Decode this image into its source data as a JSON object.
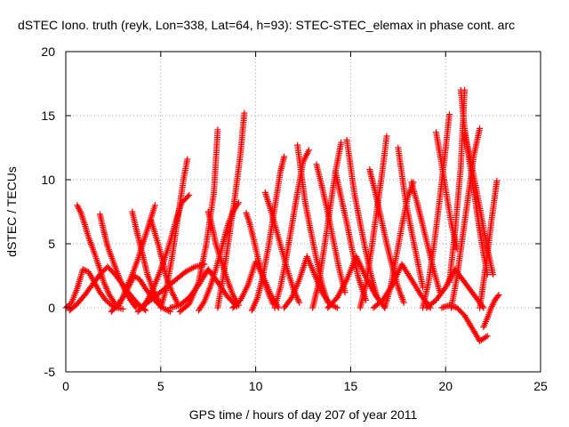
{
  "chart_data": {
    "type": "scatter",
    "title": "dSTEC Iono. truth (reyk, Lon=338, Lat=64, h=93): STEC-STEC_elemax in phase cont. arc",
    "xlabel": "GPS time / hours of day 207 of year 2011",
    "ylabel": "dSTEC  / TECUs",
    "xlim": [
      0,
      25
    ],
    "ylim": [
      -5,
      20
    ],
    "x_ticks": [
      0,
      5,
      10,
      15,
      20,
      25
    ],
    "y_ticks": [
      -5,
      0,
      5,
      10,
      15,
      20
    ],
    "x_tick_labels": [
      "0",
      "5",
      "10",
      "15",
      "20",
      "25"
    ],
    "y_tick_labels": [
      "-5",
      "0",
      "5",
      "10",
      "15",
      "20"
    ],
    "grid": true,
    "legend": "none",
    "marker": "plus",
    "color": "#ff0000",
    "series": [
      {
        "x": [
          0.0,
          0.3,
          0.6,
          0.9,
          1.2,
          1.5,
          1.8,
          2.1,
          2.4,
          2.7,
          3.0
        ],
        "y": [
          0.0,
          0.4,
          1.5,
          3.0,
          2.8,
          2.0,
          1.2,
          0.6,
          0.2,
          0.0,
          -0.1
        ]
      },
      {
        "x": [
          0.6,
          0.8,
          1.0,
          1.2,
          1.5,
          1.8,
          2.0,
          2.3,
          2.6
        ],
        "y": [
          8.0,
          7.4,
          6.5,
          5.5,
          4.3,
          3.0,
          2.0,
          1.0,
          0.3
        ]
      },
      {
        "x": [
          1.8,
          2.0,
          2.2,
          2.5,
          2.8,
          3.1,
          3.4,
          3.7
        ],
        "y": [
          7.3,
          6.0,
          4.8,
          3.6,
          2.4,
          1.4,
          0.6,
          0.0
        ]
      },
      {
        "x": [
          0.2,
          0.6,
          1.0,
          1.4,
          1.8,
          2.2,
          2.6,
          3.0,
          3.4,
          3.8,
          4.2
        ],
        "y": [
          -0.2,
          0.3,
          1.0,
          1.8,
          2.6,
          3.2,
          2.6,
          1.8,
          1.0,
          0.3,
          -0.2
        ]
      },
      {
        "x": [
          2.4,
          2.7,
          3.0,
          3.3,
          3.6,
          3.9,
          4.2,
          4.5,
          4.8,
          5.1,
          5.5
        ],
        "y": [
          -0.3,
          0.2,
          0.8,
          1.6,
          2.5,
          2.2,
          1.5,
          0.9,
          0.4,
          0.0,
          -0.3
        ]
      },
      {
        "x": [
          3.5,
          3.7,
          3.9,
          4.1,
          4.3,
          4.6,
          4.9
        ],
        "y": [
          7.5,
          6.2,
          5.0,
          3.8,
          2.6,
          1.4,
          0.5
        ]
      },
      {
        "x": [
          2.8,
          3.0,
          3.2,
          3.5,
          3.8,
          4.1,
          4.4,
          4.7
        ],
        "y": [
          0.2,
          0.8,
          1.6,
          2.6,
          3.8,
          5.2,
          6.6,
          8.0
        ]
      },
      {
        "x": [
          4.5,
          4.7,
          4.9,
          5.1,
          5.3,
          5.6,
          5.9
        ],
        "y": [
          6.8,
          5.8,
          4.8,
          3.6,
          2.4,
          1.2,
          0.3
        ]
      },
      {
        "x": [
          3.8,
          4.3,
          4.8,
          5.3,
          5.8,
          6.3,
          6.8,
          7.3
        ],
        "y": [
          -0.3,
          0.4,
          1.0,
          1.6,
          2.2,
          2.8,
          3.2,
          3.4
        ]
      },
      {
        "x": [
          4.0,
          4.3,
          4.6,
          4.9,
          5.2,
          5.5,
          5.8,
          6.1,
          6.5
        ],
        "y": [
          0.0,
          0.6,
          1.5,
          2.6,
          3.8,
          5.2,
          6.8,
          8.2,
          8.8
        ]
      },
      {
        "x": [
          5.0,
          5.3,
          5.6,
          5.9,
          6.2,
          6.4
        ],
        "y": [
          0.0,
          1.5,
          4.0,
          7.0,
          10.0,
          11.6
        ]
      },
      {
        "x": [
          5.5,
          6.0,
          6.5,
          7.0,
          7.5,
          8.0,
          8.5,
          9.0
        ],
        "y": [
          0.0,
          0.2,
          0.8,
          1.8,
          3.0,
          2.0,
          0.9,
          0.1
        ]
      },
      {
        "x": [
          6.0,
          6.5,
          7.0,
          7.4,
          7.8,
          8.0
        ],
        "y": [
          -0.3,
          0.3,
          2.0,
          5.0,
          9.0,
          13.9
        ]
      },
      {
        "x": [
          8.0,
          8.3,
          8.6,
          8.9,
          9.2,
          9.4
        ],
        "y": [
          0.0,
          2.5,
          5.5,
          8.6,
          12.0,
          15.2
        ]
      },
      {
        "x": [
          7.0,
          7.3,
          7.6,
          7.9,
          8.2,
          8.5,
          8.8,
          9.1
        ],
        "y": [
          -0.2,
          0.5,
          1.6,
          3.0,
          4.6,
          6.3,
          7.5,
          8.2
        ]
      },
      {
        "x": [
          7.5,
          7.7,
          7.9,
          8.2,
          8.5,
          8.8,
          9.1
        ],
        "y": [
          7.5,
          6.4,
          5.0,
          3.6,
          2.2,
          1.0,
          0.2
        ]
      },
      {
        "x": [
          8.8,
          9.2,
          9.6,
          10.0,
          10.4,
          10.8,
          11.2
        ],
        "y": [
          0.0,
          0.6,
          1.8,
          3.6,
          2.4,
          1.0,
          0.0
        ]
      },
      {
        "x": [
          9.5,
          9.7,
          9.9,
          10.1,
          10.3,
          10.6,
          10.9
        ],
        "y": [
          7.4,
          6.5,
          5.3,
          4.0,
          2.8,
          1.4,
          0.3
        ]
      },
      {
        "x": [
          9.8,
          10.1,
          10.4,
          10.7,
          11.0,
          11.3,
          11.5
        ],
        "y": [
          -0.2,
          0.8,
          2.6,
          5.0,
          7.8,
          10.6,
          11.8
        ]
      },
      {
        "x": [
          10.5,
          10.8,
          11.1,
          11.4,
          11.7,
          12.0,
          12.3
        ],
        "y": [
          9.0,
          7.6,
          6.0,
          4.4,
          2.8,
          1.4,
          0.4
        ]
      },
      {
        "x": [
          11.0,
          11.3,
          11.6,
          11.9,
          12.2,
          12.5,
          12.8
        ],
        "y": [
          0.0,
          1.6,
          3.8,
          6.4,
          9.0,
          11.4,
          12.3
        ]
      },
      {
        "x": [
          11.5,
          11.9,
          12.3,
          12.7,
          13.1,
          13.5,
          13.9,
          14.3
        ],
        "y": [
          0.0,
          0.8,
          2.2,
          4.0,
          2.6,
          1.2,
          0.3,
          0.0
        ]
      },
      {
        "x": [
          12.2,
          12.4,
          12.6,
          12.9,
          13.2,
          13.5,
          13.8
        ],
        "y": [
          12.7,
          10.5,
          8.3,
          6.0,
          3.8,
          1.8,
          0.4
        ]
      },
      {
        "x": [
          13.0,
          13.3,
          13.6,
          13.9,
          14.2,
          14.5
        ],
        "y": [
          0.0,
          1.8,
          4.6,
          7.6,
          10.6,
          12.9
        ]
      },
      {
        "x": [
          13.2,
          13.5,
          13.8,
          14.1,
          14.4,
          14.7
        ],
        "y": [
          11.2,
          9.4,
          7.4,
          5.2,
          3.0,
          1.2
        ]
      },
      {
        "x": [
          14.2,
          14.5,
          14.8,
          15.1,
          15.4,
          15.8
        ],
        "y": [
          10.6,
          8.6,
          6.6,
          4.4,
          2.4,
          0.6
        ]
      },
      {
        "x": [
          13.8,
          14.3,
          14.8,
          15.3,
          15.8,
          16.3,
          16.8
        ],
        "y": [
          0.0,
          0.8,
          2.2,
          4.0,
          2.4,
          1.0,
          0.0
        ]
      },
      {
        "x": [
          14.8,
          15.0,
          15.2,
          15.5,
          15.8,
          16.1,
          16.4
        ],
        "y": [
          13.1,
          11.0,
          8.9,
          6.6,
          4.4,
          2.4,
          0.8
        ]
      },
      {
        "x": [
          15.5,
          15.8,
          16.1,
          16.4,
          16.7,
          16.9
        ],
        "y": [
          0.0,
          1.8,
          4.6,
          7.8,
          11.0,
          13.4
        ]
      },
      {
        "x": [
          16.0,
          16.3,
          16.6,
          16.9,
          17.2,
          17.5,
          17.8
        ],
        "y": [
          10.8,
          9.0,
          7.0,
          5.0,
          3.2,
          1.6,
          0.4
        ]
      },
      {
        "x": [
          16.2,
          16.7,
          17.2,
          17.7,
          18.2,
          18.7,
          19.2
        ],
        "y": [
          0.0,
          0.6,
          1.8,
          3.4,
          2.2,
          1.0,
          0.0
        ]
      },
      {
        "x": [
          16.8,
          17.1,
          17.4,
          17.7,
          18.0,
          18.3
        ],
        "y": [
          0.0,
          1.6,
          4.0,
          6.4,
          8.6,
          9.8
        ]
      },
      {
        "x": [
          17.5,
          17.7,
          17.9,
          18.2,
          18.5,
          18.8
        ],
        "y": [
          12.5,
          10.4,
          8.3,
          6.0,
          3.8,
          1.6
        ]
      },
      {
        "x": [
          18.2,
          18.5,
          18.8,
          19.1,
          19.4,
          19.7
        ],
        "y": [
          9.8,
          8.2,
          6.4,
          4.6,
          2.8,
          1.2
        ]
      },
      {
        "x": [
          18.8,
          19.1,
          19.4,
          19.7,
          20.0,
          20.2
        ],
        "y": [
          0.0,
          2.0,
          5.0,
          8.6,
          12.4,
          15.1
        ]
      },
      {
        "x": [
          19.5,
          19.7,
          19.9,
          20.1,
          20.3,
          20.6
        ],
        "y": [
          13.7,
          12.0,
          10.2,
          8.4,
          6.6,
          4.6
        ]
      },
      {
        "x": [
          19.0,
          19.5,
          20.0,
          20.5,
          21.0,
          21.5,
          22.0
        ],
        "y": [
          0.0,
          0.6,
          1.6,
          3.0,
          2.0,
          1.0,
          0.0
        ]
      },
      {
        "x": [
          19.8,
          20.2,
          20.6,
          21.0,
          21.4,
          21.8,
          22.2
        ],
        "y": [
          0.0,
          0.2,
          0.0,
          -0.6,
          -1.6,
          -2.6,
          -2.2
        ]
      },
      {
        "x": [
          20.2,
          20.5,
          20.8,
          21.0
        ],
        "y": [
          2.0,
          6.0,
          11.0,
          17.0
        ]
      },
      {
        "x": [
          20.8,
          21.0,
          21.2,
          21.4,
          21.6,
          21.8,
          22.0,
          22.2
        ],
        "y": [
          17.0,
          14.0,
          12.0,
          10.0,
          8.0,
          6.0,
          4.2,
          2.6
        ]
      },
      {
        "x": [
          20.3,
          20.6,
          20.9,
          21.2,
          21.5,
          21.8
        ],
        "y": [
          0.0,
          2.4,
          5.6,
          8.8,
          12.0,
          14.0
        ]
      },
      {
        "x": [
          21.0,
          21.3,
          21.6,
          21.9,
          22.2,
          22.5
        ],
        "y": [
          13.6,
          11.6,
          9.4,
          7.0,
          4.6,
          2.6
        ]
      },
      {
        "x": [
          21.8,
          22.0,
          22.2,
          22.4,
          22.6,
          22.7
        ],
        "y": [
          0.0,
          2.0,
          4.2,
          6.6,
          8.8,
          9.9
        ]
      },
      {
        "x": [
          22.0,
          22.2,
          22.4,
          22.6,
          22.8
        ],
        "y": [
          -1.5,
          -0.8,
          0.0,
          0.6,
          1.0
        ]
      }
    ]
  }
}
